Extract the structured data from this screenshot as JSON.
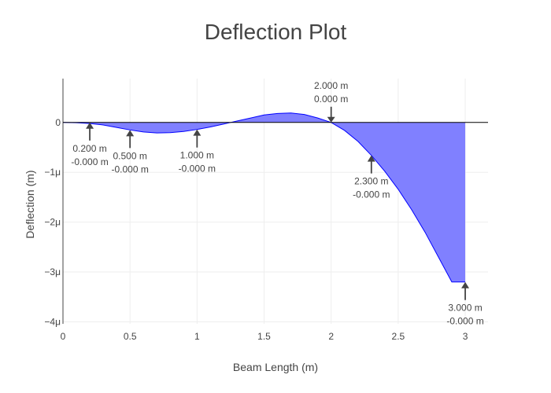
{
  "chart_data": {
    "type": "area",
    "title": "Deflection Plot",
    "xlabel": "Beam Length (m)",
    "ylabel": "Deflection (m)",
    "xlim": [
      0,
      3.17
    ],
    "ylim": [
      -4.04e-06,
      8.8e-07
    ],
    "x_ticks": [
      {
        "value": 0,
        "label": "0"
      },
      {
        "value": 0.5,
        "label": "0.5"
      },
      {
        "value": 1,
        "label": "1"
      },
      {
        "value": 1.5,
        "label": "1.5"
      },
      {
        "value": 2,
        "label": "2"
      },
      {
        "value": 2.5,
        "label": "2.5"
      },
      {
        "value": 3,
        "label": "3"
      }
    ],
    "y_ticks": [
      {
        "value": 0,
        "label": "0"
      },
      {
        "value": -1e-06,
        "label": "−1μ"
      },
      {
        "value": -2e-06,
        "label": "−2μ"
      },
      {
        "value": -3e-06,
        "label": "−3μ"
      },
      {
        "value": -4e-06,
        "label": "−4μ"
      }
    ],
    "grid": true,
    "fill_color": "#8080ff",
    "line_color": "#0000ff",
    "x": [
      0,
      0.1,
      0.2,
      0.3,
      0.4,
      0.5,
      0.6,
      0.7,
      0.8,
      0.9,
      1.0,
      1.1,
      1.2,
      1.25,
      1.3,
      1.4,
      1.5,
      1.6,
      1.7,
      1.8,
      1.9,
      2.0,
      2.1,
      2.2,
      2.3,
      2.4,
      2.5,
      2.6,
      2.7,
      2.8,
      2.9,
      3.0
    ],
    "y": [
      0,
      -5e-09,
      -2e-08,
      -5e-08,
      -1e-07,
      -1.5e-07,
      -1.9e-07,
      -2.1e-07,
      -2.05e-07,
      -1.8e-07,
      -1.4e-07,
      -9e-08,
      -3e-08,
      0,
      3e-08,
      9e-08,
      1.5e-07,
      1.8e-07,
      1.9e-07,
      1.6e-07,
      9e-08,
      0,
      -1.6e-07,
      -3.8e-07,
      -6.6e-07,
      -9.8e-07,
      -1.34e-06,
      -1.75e-06,
      -2.2e-06,
      -2.7e-06,
      -3.2e-06,
      -3.2e-06
    ],
    "annotations": [
      {
        "x": 0.2,
        "y": 0,
        "side": "below",
        "lines": [
          "0.200 m",
          "-0.000 m"
        ]
      },
      {
        "x": 0.5,
        "y": -1.5e-07,
        "side": "below",
        "lines": [
          "0.500 m",
          "-0.000 m"
        ]
      },
      {
        "x": 1.0,
        "y": -1.4e-07,
        "side": "below",
        "lines": [
          "1.000 m",
          "-0.000 m"
        ]
      },
      {
        "x": 2.0,
        "y": 0,
        "side": "above",
        "lines": [
          "2.000 m",
          "0.000 m"
        ]
      },
      {
        "x": 2.3,
        "y": -6.6e-07,
        "side": "below",
        "lines": [
          "2.300 m",
          "-0.000 m"
        ]
      },
      {
        "x": 3.0,
        "y": -3.2e-06,
        "side": "below",
        "lines": [
          "3.000 m",
          "-0.000 m"
        ]
      }
    ]
  }
}
